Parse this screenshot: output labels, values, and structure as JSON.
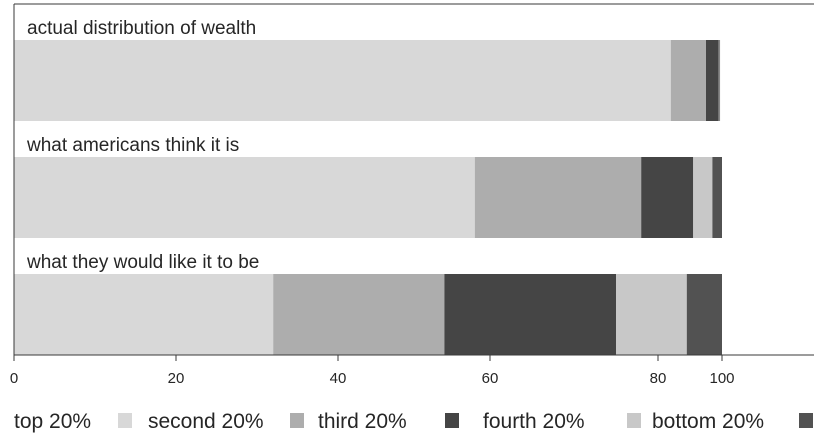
{
  "chart_data": {
    "type": "bar",
    "orientation": "horizontal",
    "stacked": true,
    "title": "",
    "xlabel": "",
    "ylabel": "",
    "categories": [
      "actual distribution of wealth",
      "what americans think it is",
      "what they would like it to be"
    ],
    "series": [
      {
        "name": "top 20%",
        "color": "#d8d8d8",
        "values": [
          84,
          58,
          32
        ]
      },
      {
        "name": "second 20%",
        "color": "#adadad",
        "values": [
          11,
          20,
          22
        ]
      },
      {
        "name": "third 20%",
        "color": "#454545",
        "values": [
          4,
          13,
          21
        ]
      },
      {
        "name": "fourth 20%",
        "color": "#c8c8c8",
        "values": [
          0.2,
          6,
          14
        ]
      },
      {
        "name": "bottom 20%",
        "color": "#525252",
        "values": [
          0.1,
          3,
          11
        ]
      }
    ],
    "x_ticks": [
      {
        "value": 0,
        "label": "0"
      },
      {
        "value": 20,
        "label": "20"
      },
      {
        "value": 40,
        "label": "40"
      },
      {
        "value": 60,
        "label": "60"
      },
      {
        "value": 80,
        "label": "80"
      },
      {
        "value": 100,
        "label": "100"
      }
    ],
    "xlim": [
      0,
      100
    ],
    "grid": false,
    "legend": {
      "placement": "bottom"
    }
  }
}
